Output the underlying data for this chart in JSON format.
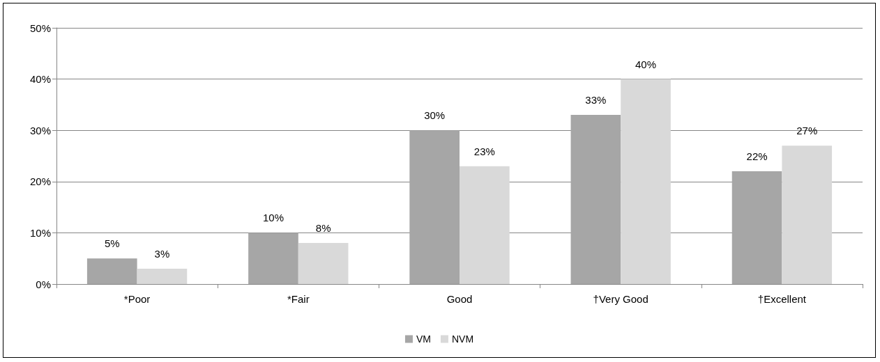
{
  "chart_data": {
    "type": "bar",
    "categories": [
      "*Poor",
      "*Fair",
      "Good",
      "†Very Good",
      "†Excellent"
    ],
    "series": [
      {
        "name": "VM",
        "color": "#a6a6a6",
        "values": [
          5,
          10,
          30,
          33,
          22
        ],
        "value_labels": [
          "5%",
          "10%",
          "30%",
          "33%",
          "22%"
        ]
      },
      {
        "name": "NVM",
        "color": "#d9d9d9",
        "values": [
          3,
          8,
          23,
          40,
          27
        ],
        "value_labels": [
          "3%",
          "8%",
          "23%",
          "40%",
          "27%"
        ]
      }
    ],
    "ylim": [
      0,
      50
    ],
    "yticks": [
      {
        "value": 0,
        "label": "0%"
      },
      {
        "value": 10,
        "label": "10%"
      },
      {
        "value": 20,
        "label": "20%"
      },
      {
        "value": 30,
        "label": "30%"
      },
      {
        "value": 40,
        "label": "40%"
      },
      {
        "value": 50,
        "label": "50%"
      }
    ],
    "grid": "y",
    "legend": "bottom"
  }
}
